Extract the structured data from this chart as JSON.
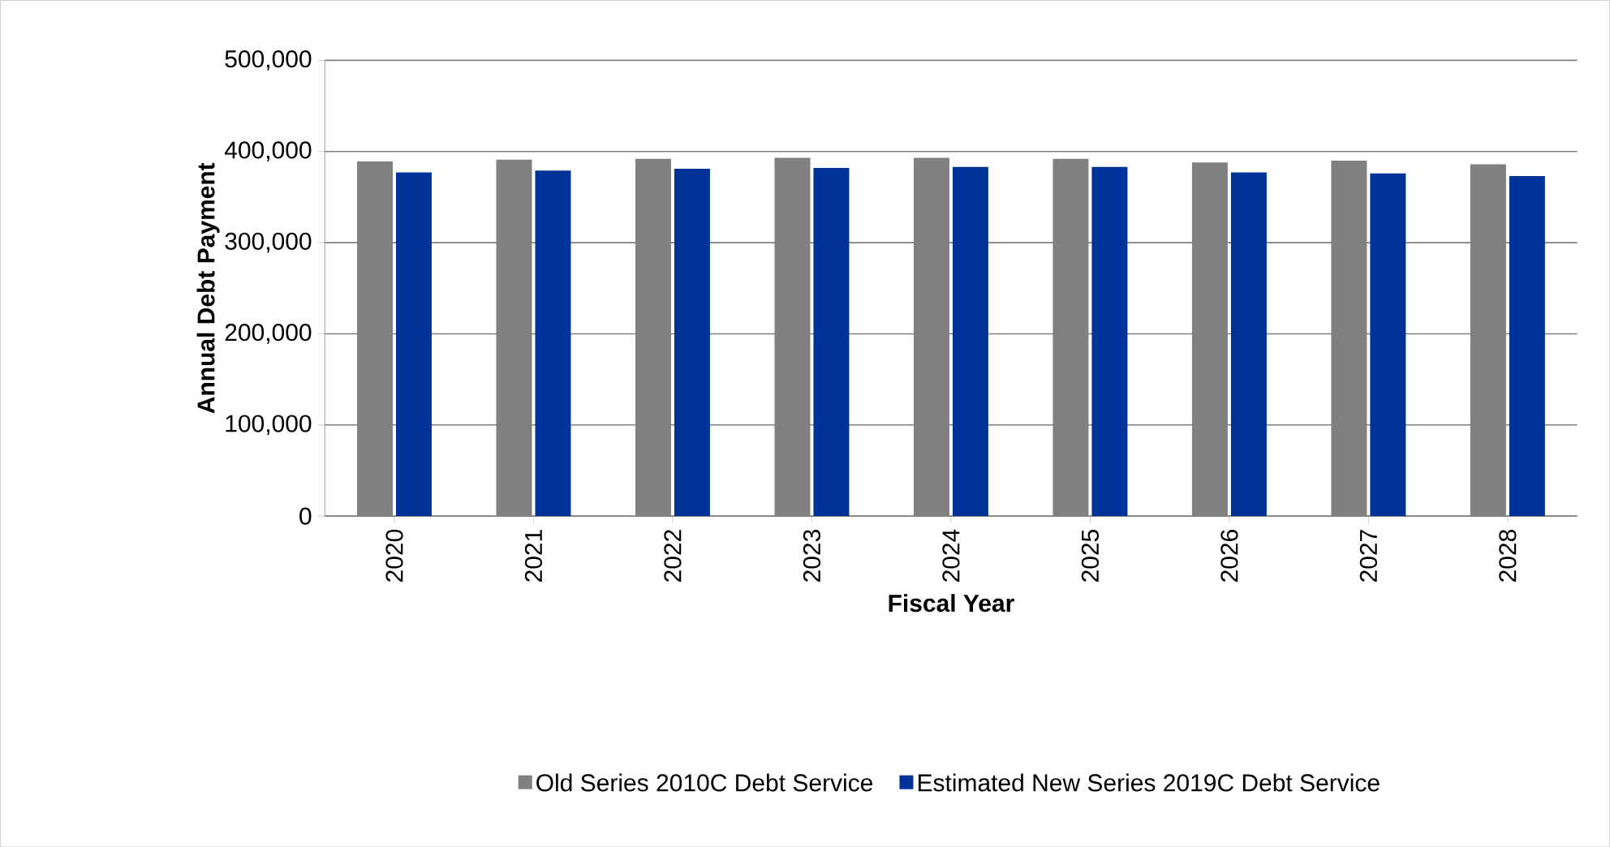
{
  "chart_data": {
    "type": "bar",
    "xlabel": "Fiscal Year",
    "ylabel": "Annual Debt Payment",
    "categories": [
      "2020",
      "2021",
      "2022",
      "2023",
      "2024",
      "2025",
      "2026",
      "2027",
      "2028"
    ],
    "series": [
      {
        "name": "Old Series 2010C Debt Service",
        "color": "#808080",
        "values": [
          389000,
          391000,
          392000,
          393000,
          393000,
          392000,
          388000,
          390000,
          386000
        ]
      },
      {
        "name": "Estimated New Series 2019C Debt Service",
        "color": "#003399",
        "values": [
          377000,
          379000,
          381000,
          382000,
          383000,
          383000,
          377000,
          376000,
          373000
        ]
      }
    ],
    "ylim": [
      0,
      500000
    ],
    "yticks": [
      {
        "value": 0,
        "label": "0"
      },
      {
        "value": 100000,
        "label": "100,000"
      },
      {
        "value": 200000,
        "label": "200,000"
      },
      {
        "value": 300000,
        "label": "300,000"
      },
      {
        "value": 400000,
        "label": "400,000"
      },
      {
        "value": 500000,
        "label": "500,000"
      }
    ],
    "grid": "y",
    "legend": "bottom"
  }
}
